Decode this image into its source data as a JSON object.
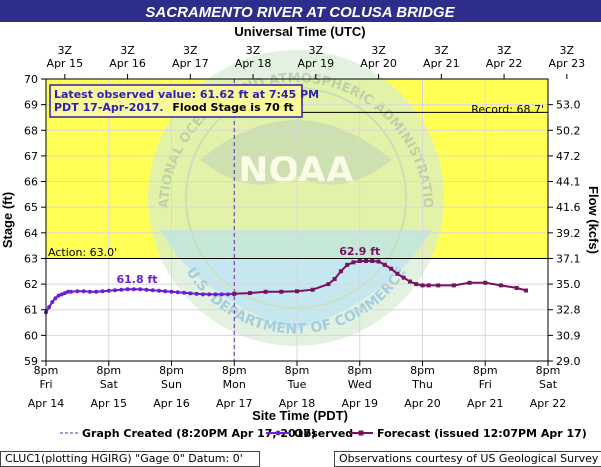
{
  "chart_data": {
    "type": "line",
    "title": "SACRAMENTO RIVER AT COLUSA BRIDGE",
    "top_axis_label": "Universal Time (UTC)",
    "xlabel": "Site Time (PDT)",
    "ylabel": "Stage (ft)",
    "y2label": "Flow (kcfs)",
    "ylim": [
      59,
      70
    ],
    "y_ticks": [
      "59",
      "60",
      "61",
      "62",
      "63",
      "64",
      "65",
      "66",
      "67",
      "68",
      "69",
      "70"
    ],
    "flow_ticks": [
      {
        "stage": 59,
        "label": "29.0"
      },
      {
        "stage": 60,
        "label": "30.9"
      },
      {
        "stage": 61,
        "label": "32.8"
      },
      {
        "stage": 62,
        "label": "35.0"
      },
      {
        "stage": 63,
        "label": "37.1"
      },
      {
        "stage": 64,
        "label": "39.2"
      },
      {
        "stage": 65,
        "label": "41.6"
      },
      {
        "stage": 66,
        "label": "44.1"
      },
      {
        "stage": 67,
        "label": "47.2"
      },
      {
        "stage": 68,
        "label": "50.2"
      },
      {
        "stage": 69,
        "label": "53.0"
      }
    ],
    "x_days_range": [
      0,
      8
    ],
    "bottom_ticks": [
      {
        "t": "8pm",
        "d": "Fri",
        "date": "Apr 14"
      },
      {
        "t": "8pm",
        "d": "Sat",
        "date": "Apr 15"
      },
      {
        "t": "8pm",
        "d": "Sun",
        "date": "Apr 16"
      },
      {
        "t": "8pm",
        "d": "Mon",
        "date": "Apr 17"
      },
      {
        "t": "8pm",
        "d": "Tue",
        "date": "Apr 18"
      },
      {
        "t": "8pm",
        "d": "Wed",
        "date": "Apr 19"
      },
      {
        "t": "8pm",
        "d": "Thu",
        "date": "Apr 20"
      },
      {
        "t": "8pm",
        "d": "Fri",
        "date": "Apr 21"
      },
      {
        "t": "8pm",
        "d": "Sat",
        "date": "Apr 22"
      }
    ],
    "top_ticks": [
      {
        "t": "3Z",
        "date": "Apr 15"
      },
      {
        "t": "3Z",
        "date": "Apr 16"
      },
      {
        "t": "3Z",
        "date": "Apr 17"
      },
      {
        "t": "3Z",
        "date": "Apr 18"
      },
      {
        "t": "3Z",
        "date": "Apr 19"
      },
      {
        "t": "3Z",
        "date": "Apr 20"
      },
      {
        "t": "3Z",
        "date": "Apr 21"
      },
      {
        "t": "3Z",
        "date": "Apr 22"
      },
      {
        "t": "3Z",
        "date": "Apr 23"
      }
    ],
    "flood_stage": 63.0,
    "action_label": "Action: 63.0'",
    "record_stage": 68.7,
    "record_label": "Record: 68.7'",
    "graph_created_day": 3.0,
    "info_line1": "Latest observed value: 61.62  ft at 7:45 PM",
    "info_line2a": "PDT 17-Apr-2017.",
    "info_line2b": "Flood Stage is 70 ft",
    "observed_peak_label": "61.8 ft",
    "observed_peak": {
      "x": 1.45,
      "y": 61.8
    },
    "forecast_peak_label": "62.9 ft",
    "forecast_peak": {
      "x": 5.0,
      "y": 62.9
    },
    "series": [
      {
        "name": "Observed",
        "color": "#6a1fd6",
        "x": [
          0.0,
          0.05,
          0.1,
          0.15,
          0.2,
          0.25,
          0.3,
          0.35,
          0.4,
          0.5,
          0.6,
          0.7,
          0.8,
          0.9,
          1.0,
          1.1,
          1.2,
          1.3,
          1.4,
          1.5,
          1.6,
          1.7,
          1.8,
          1.9,
          2.0,
          2.1,
          2.2,
          2.3,
          2.4,
          2.5,
          2.6,
          2.7,
          2.8,
          2.9,
          3.0
        ],
        "y": [
          60.9,
          61.1,
          61.3,
          61.45,
          61.55,
          61.6,
          61.65,
          61.7,
          61.7,
          61.72,
          61.72,
          61.7,
          61.7,
          61.72,
          61.74,
          61.76,
          61.78,
          61.8,
          61.8,
          61.8,
          61.78,
          61.76,
          61.74,
          61.72,
          61.7,
          61.68,
          61.66,
          61.64,
          61.62,
          61.6,
          61.6,
          61.6,
          61.6,
          61.6,
          61.62
        ]
      },
      {
        "name": "Forecast",
        "color": "#7a1060",
        "x": [
          3.0,
          3.25,
          3.5,
          3.75,
          4.0,
          4.25,
          4.5,
          4.6,
          4.7,
          4.8,
          4.9,
          5.0,
          5.1,
          5.2,
          5.3,
          5.4,
          5.5,
          5.6,
          5.7,
          5.8,
          5.9,
          6.0,
          6.1,
          6.25,
          6.5,
          6.75,
          7.0,
          7.25,
          7.5,
          7.65
        ],
        "y": [
          61.62,
          61.65,
          61.7,
          61.7,
          61.72,
          61.78,
          62.0,
          62.2,
          62.5,
          62.75,
          62.85,
          62.9,
          62.9,
          62.9,
          62.88,
          62.75,
          62.6,
          62.4,
          62.25,
          62.1,
          62.0,
          61.95,
          61.95,
          61.95,
          61.95,
          62.05,
          62.05,
          61.95,
          61.85,
          61.75
        ]
      }
    ],
    "legend": {
      "created": "Graph Created (8:20PM Apr 17, 2017)",
      "observed": "Observed",
      "forecast": "Forecast (issued 12:07PM Apr 17)"
    },
    "watermark": {
      "letters": "NOAA",
      "ring_top": "NATIONAL OCEANIC AND ATMOSPHERIC ADMINISTRATION",
      "ring_bottom": "U.S. DEPARTMENT OF COMMERCE"
    },
    "colors": {
      "flood_zone": "#ffff55",
      "title_bar": "#2d2d8c",
      "info_box_bg": "#fafa9a",
      "info_text": "#3020b0"
    }
  },
  "footer": {
    "left": "CLUC1(plotting HGIRG) \"Gage 0\" Datum: 0'",
    "right": "Observations courtesy of US Geological Survey"
  }
}
